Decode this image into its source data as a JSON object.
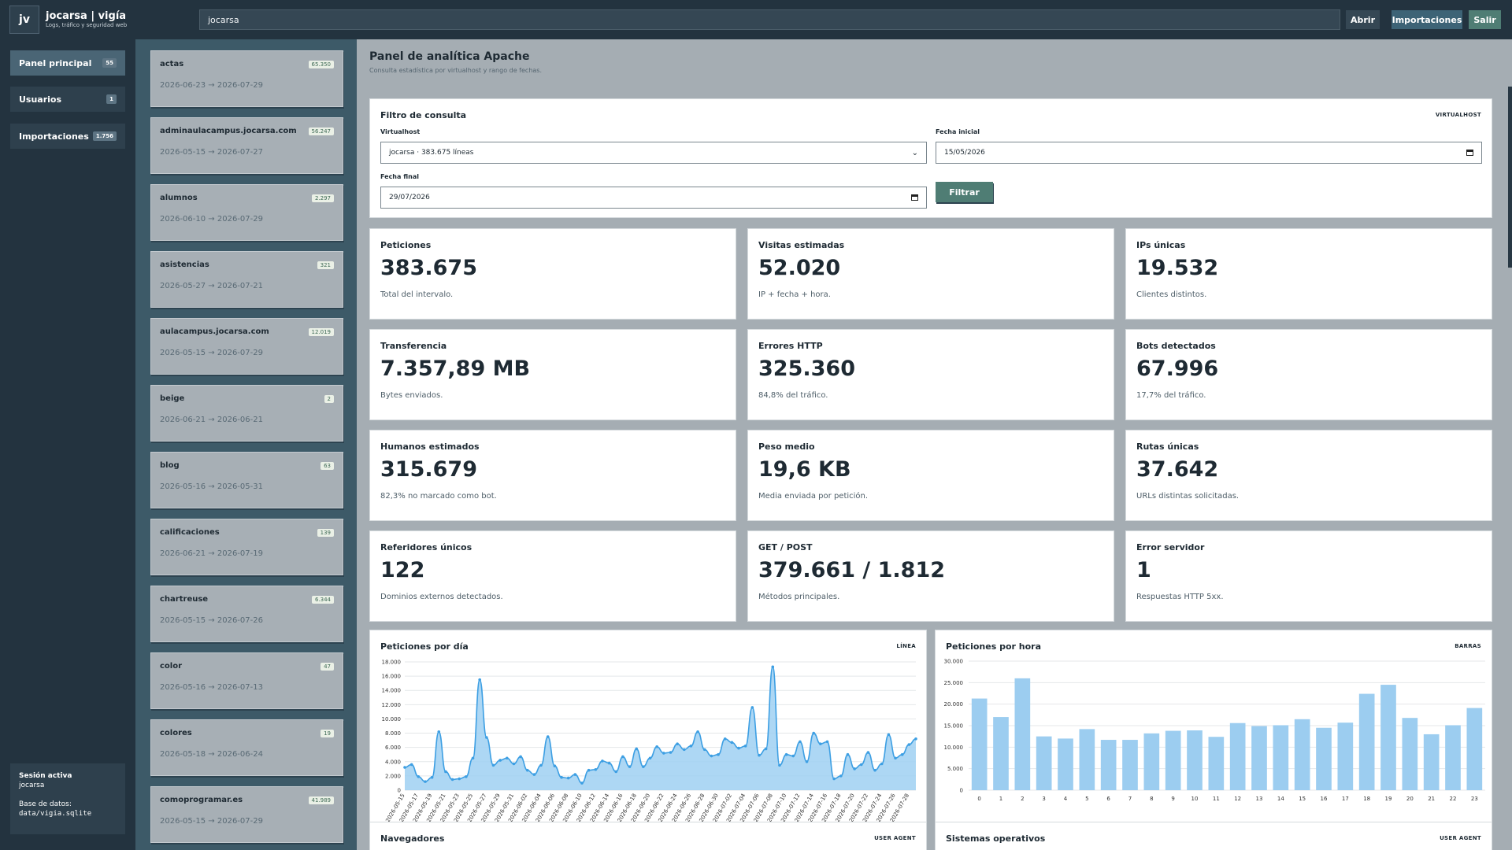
{
  "header": {
    "logo": "jv",
    "title": "jocarsa | vigía",
    "subtitle": "Logs, tráfico y seguridad web",
    "search_value": "jocarsa",
    "open_label": "Abrir",
    "imports_label": "Importaciones",
    "logout_label": "Salir"
  },
  "sidebar": {
    "items": [
      {
        "label": "Panel principal",
        "count": "55"
      },
      {
        "label": "Usuarios",
        "count": "1"
      },
      {
        "label": "Importaciones",
        "count": "1.756"
      }
    ],
    "session": {
      "title": "Sesión activa",
      "user": "jocarsa",
      "db_label": "Base de datos:",
      "db_path": "data/vigia.sqlite"
    }
  },
  "vhosts": [
    {
      "name": "actas",
      "count": "65.350",
      "range": "2026-06-23 → 2026-07-29"
    },
    {
      "name": "adminaulacampus.jocarsa.com",
      "count": "56.247",
      "range": "2026-05-15 → 2026-07-27"
    },
    {
      "name": "alumnos",
      "count": "2.297",
      "range": "2026-06-10 → 2026-07-29"
    },
    {
      "name": "asistencias",
      "count": "321",
      "range": "2026-05-27 → 2026-07-21"
    },
    {
      "name": "aulacampus.jocarsa.com",
      "count": "12.019",
      "range": "2026-05-15 → 2026-07-29"
    },
    {
      "name": "beige",
      "count": "2",
      "range": "2026-06-21 → 2026-06-21"
    },
    {
      "name": "blog",
      "count": "63",
      "range": "2026-05-16 → 2026-05-31"
    },
    {
      "name": "calificaciones",
      "count": "139",
      "range": "2026-06-21 → 2026-07-19"
    },
    {
      "name": "chartreuse",
      "count": "6.344",
      "range": "2026-05-15 → 2026-07-26"
    },
    {
      "name": "color",
      "count": "47",
      "range": "2026-05-16 → 2026-07-13"
    },
    {
      "name": "colores",
      "count": "19",
      "range": "2026-05-18 → 2026-06-24"
    },
    {
      "name": "comoprogramar.es",
      "count": "41.989",
      "range": "2026-05-15 → 2026-07-29"
    }
  ],
  "page": {
    "title": "Panel de analítica Apache",
    "subtitle": "Consulta estadística por virtualhost y rango de fechas."
  },
  "filter": {
    "title": "Filtro de consulta",
    "tag": "VIRTUALHOST",
    "vh_label": "Virtualhost",
    "vh_value": "jocarsa · 383.675 líneas",
    "start_label": "Fecha inicial",
    "start_value": "15/05/2026",
    "end_label": "Fecha final",
    "end_value": "29/07/2026",
    "button": "Filtrar"
  },
  "stats": [
    {
      "label": "Peticiones",
      "value": "383.675",
      "sub": "Total del intervalo."
    },
    {
      "label": "Visitas estimadas",
      "value": "52.020",
      "sub": "IP + fecha + hora."
    },
    {
      "label": "IPs únicas",
      "value": "19.532",
      "sub": "Clientes distintos."
    },
    {
      "label": "Transferencia",
      "value": "7.357,89 MB",
      "sub": "Bytes enviados."
    },
    {
      "label": "Errores HTTP",
      "value": "325.360",
      "sub": "84,8% del tráfico."
    },
    {
      "label": "Bots detectados",
      "value": "67.996",
      "sub": "17,7% del tráfico."
    },
    {
      "label": "Humanos estimados",
      "value": "315.679",
      "sub": "82,3% no marcado como bot."
    },
    {
      "label": "Peso medio",
      "value": "19,6 KB",
      "sub": "Media enviada por petición."
    },
    {
      "label": "Rutas únicas",
      "value": "37.642",
      "sub": "URLs distintas solicitadas."
    },
    {
      "label": "Referidores únicos",
      "value": "122",
      "sub": "Dominios externos detectados."
    },
    {
      "label": "GET / POST",
      "value": "379.661 / 1.812",
      "sub": "Métodos principales."
    },
    {
      "label": "Error servidor",
      "value": "1",
      "sub": "Respuestas HTTP 5xx."
    }
  ],
  "chart_titles": {
    "day": "Peticiones por día",
    "day_tag": "LÍNEA",
    "hour": "Peticiones por hora",
    "hour_tag": "BARRAS",
    "browsers": "Navegadores",
    "browsers_tag": "USER AGENT",
    "os": "Sistemas operativos",
    "os_tag": "USER AGENT"
  },
  "colors": {
    "accent": "#4f7d74",
    "line": "#3d9fe3",
    "fill": "#9fd0f2",
    "bar": "#9ccdf0"
  },
  "chart_data": [
    {
      "type": "line",
      "title": "Peticiones por día",
      "ylim": [
        0,
        18000
      ],
      "yticks": [
        0,
        2000,
        4000,
        6000,
        8000,
        10000,
        12000,
        14000,
        16000,
        18000
      ],
      "x": [
        "2026-05-15",
        "2026-05-16",
        "2026-05-17",
        "2026-05-18",
        "2026-05-19",
        "2026-05-20",
        "2026-05-21",
        "2026-05-22",
        "2026-05-23",
        "2026-05-24",
        "2026-05-25",
        "2026-05-26",
        "2026-05-27",
        "2026-05-28",
        "2026-05-29",
        "2026-05-30",
        "2026-05-31",
        "2026-06-01",
        "2026-06-02",
        "2026-06-03",
        "2026-06-04",
        "2026-06-05",
        "2026-06-06",
        "2026-06-07",
        "2026-06-08",
        "2026-06-09",
        "2026-06-10",
        "2026-06-11",
        "2026-06-12",
        "2026-06-13",
        "2026-06-14",
        "2026-06-15",
        "2026-06-16",
        "2026-06-17",
        "2026-06-18",
        "2026-06-19",
        "2026-06-20",
        "2026-06-21",
        "2026-06-22",
        "2026-06-23",
        "2026-06-24",
        "2026-06-25",
        "2026-06-26",
        "2026-06-27",
        "2026-06-28",
        "2026-06-29",
        "2026-06-30",
        "2026-07-01",
        "2026-07-02",
        "2026-07-03",
        "2026-07-04",
        "2026-07-05",
        "2026-07-06",
        "2026-07-07",
        "2026-07-08",
        "2026-07-09",
        "2026-07-10",
        "2026-07-11",
        "2026-07-12",
        "2026-07-13",
        "2026-07-14",
        "2026-07-15",
        "2026-07-16",
        "2026-07-17",
        "2026-07-18",
        "2026-07-19",
        "2026-07-20",
        "2026-07-21",
        "2026-07-22",
        "2026-07-23",
        "2026-07-24",
        "2026-07-25",
        "2026-07-26",
        "2026-07-27",
        "2026-07-28",
        "2026-07-29"
      ],
      "values": [
        3200,
        3600,
        1900,
        1200,
        1800,
        8200,
        2600,
        1500,
        1600,
        1900,
        4500,
        15500,
        7400,
        3500,
        4200,
        4500,
        3700,
        4700,
        2800,
        2200,
        3500,
        7500,
        3400,
        1800,
        1700,
        2200,
        1000,
        2800,
        2900,
        4100,
        3800,
        2600,
        4700,
        3300,
        5800,
        3300,
        4500,
        6100,
        5200,
        5300,
        6500,
        5700,
        6200,
        8200,
        5700,
        4800,
        5000,
        7200,
        6700,
        5900,
        6200,
        11600,
        4900,
        5800,
        17300,
        3500,
        5000,
        4800,
        6800,
        4000,
        8000,
        6500,
        6800,
        1600,
        2000,
        5000,
        3000,
        3600,
        5300,
        2800,
        3700,
        7800,
        4500,
        5000,
        6400,
        7200
      ]
    },
    {
      "type": "bar",
      "title": "Peticiones por hora",
      "ylim": [
        0,
        30000
      ],
      "yticks": [
        0,
        5000,
        10000,
        15000,
        20000,
        25000,
        30000
      ],
      "categories": [
        "0",
        "1",
        "2",
        "3",
        "4",
        "5",
        "6",
        "7",
        "8",
        "9",
        "10",
        "11",
        "12",
        "13",
        "14",
        "15",
        "16",
        "17",
        "18",
        "19",
        "20",
        "21",
        "22",
        "23"
      ],
      "values": [
        21300,
        17000,
        26000,
        12500,
        12000,
        14200,
        11700,
        11700,
        13200,
        13800,
        13900,
        12400,
        15600,
        14900,
        15100,
        16500,
        14500,
        15700,
        22400,
        24500,
        16800,
        13000,
        15100,
        19100
      ]
    }
  ]
}
